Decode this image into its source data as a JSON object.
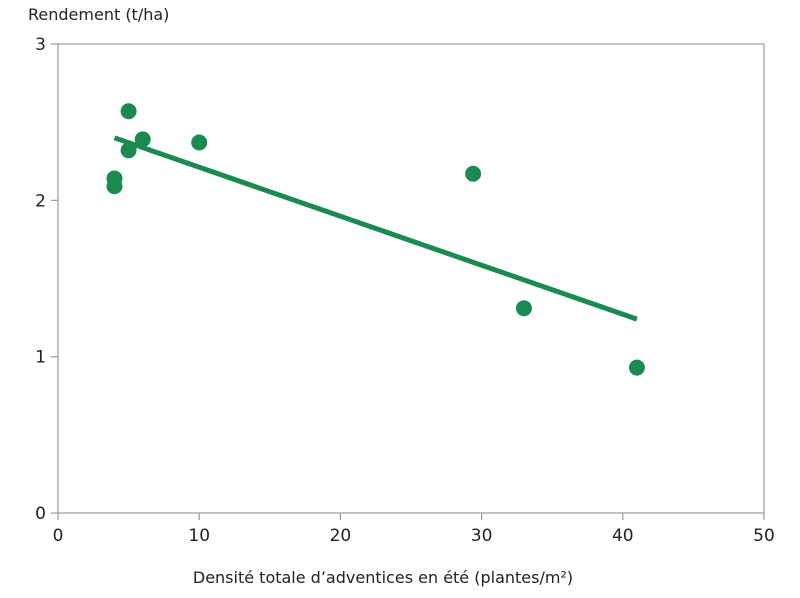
{
  "chart_data": {
    "type": "scatter",
    "ylabel": "Rendement (t/ha)",
    "xlabel": "Densité totale d’adventices en été (plantes/m²)",
    "xlim": [
      0,
      50
    ],
    "ylim": [
      0,
      3
    ],
    "xticks": [
      0,
      10,
      20,
      30,
      40,
      50
    ],
    "yticks": [
      0,
      1,
      2,
      3
    ],
    "grid": false,
    "colors": {
      "series": "#1a8a50",
      "axis": "#9a9a9a"
    },
    "series": [
      {
        "points": [
          {
            "x": 4.0,
            "y": 2.14
          },
          {
            "x": 4.0,
            "y": 2.09
          },
          {
            "x": 5.0,
            "y": 2.57
          },
          {
            "x": 5.0,
            "y": 2.32
          },
          {
            "x": 6.0,
            "y": 2.39
          },
          {
            "x": 10.0,
            "y": 2.37
          },
          {
            "x": 29.4,
            "y": 2.17
          },
          {
            "x": 33.0,
            "y": 1.31
          },
          {
            "x": 41.0,
            "y": 0.93
          }
        ]
      }
    ],
    "trendline": {
      "x": [
        4.0,
        41.0
      ],
      "y": [
        2.4,
        1.24
      ]
    }
  }
}
